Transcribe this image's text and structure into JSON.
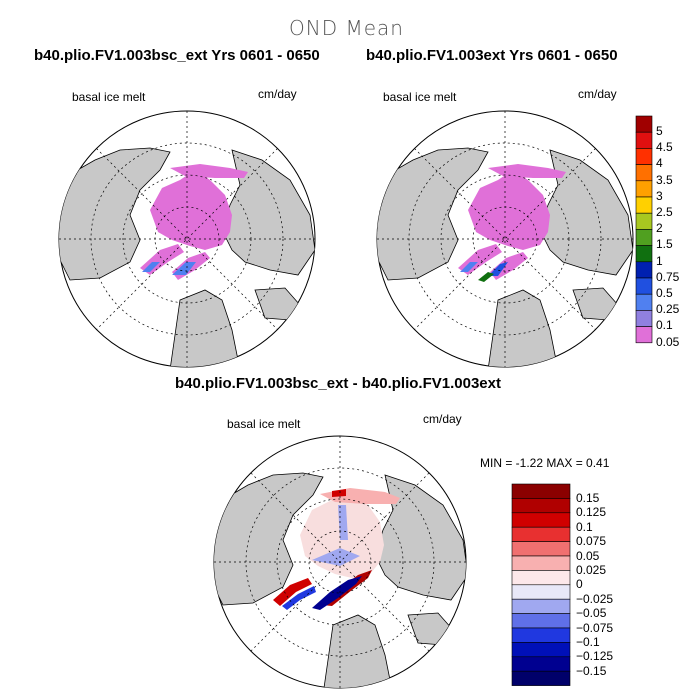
{
  "figure": {
    "title": "OND Mean"
  },
  "panels": [
    {
      "title": "b40.plio.FV1.003bsc_ext  Yrs 0601 - 0650",
      "variable": "basal ice melt",
      "units": "cm/day"
    },
    {
      "title": "b40.plio.FV1.003ext  Yrs 0601 - 0650",
      "variable": "basal ice melt",
      "units": "cm/day"
    },
    {
      "title": "b40.plio.FV1.003bsc_ext - b40.plio.FV1.003ext",
      "variable": "basal ice melt",
      "units": "cm/day",
      "stats": "MIN =   -1.22  MAX =    0.41"
    }
  ],
  "legend_top": {
    "labels": [
      "5",
      "4.5",
      "4",
      "3.5",
      "3",
      "2.5",
      "2",
      "1.5",
      "1",
      "0.75",
      "0.5",
      "0.25",
      "0.1",
      "0.05"
    ],
    "colors": [
      "#a00000",
      "#e01010",
      "#ff3000",
      "#ff7000",
      "#ffa000",
      "#ffd000",
      "#a8c820",
      "#50a020",
      "#107010",
      "#0020b0",
      "#2050e0",
      "#5080f0",
      "#9080e0",
      "#e070d8"
    ]
  },
  "legend_diff": {
    "labels": [
      "0.15",
      "0.125",
      "0.1",
      "0.075",
      "0.05",
      "0.025",
      "0",
      "−0.025",
      "−0.05",
      "−0.075",
      "−0.1",
      "−0.125",
      "−0.15"
    ],
    "colors": [
      "#8b0000",
      "#b00000",
      "#d00000",
      "#e83030",
      "#f07070",
      "#f8b0b0",
      "#fde8ea",
      "#e8e8f8",
      "#a0a8f0",
      "#6070e8",
      "#2038e0",
      "#0010b8",
      "#000090",
      "#00006a"
    ]
  },
  "colors": {
    "land": "#c8c8c8",
    "ice_melt": "#e070d8",
    "grid": "#000000"
  }
}
